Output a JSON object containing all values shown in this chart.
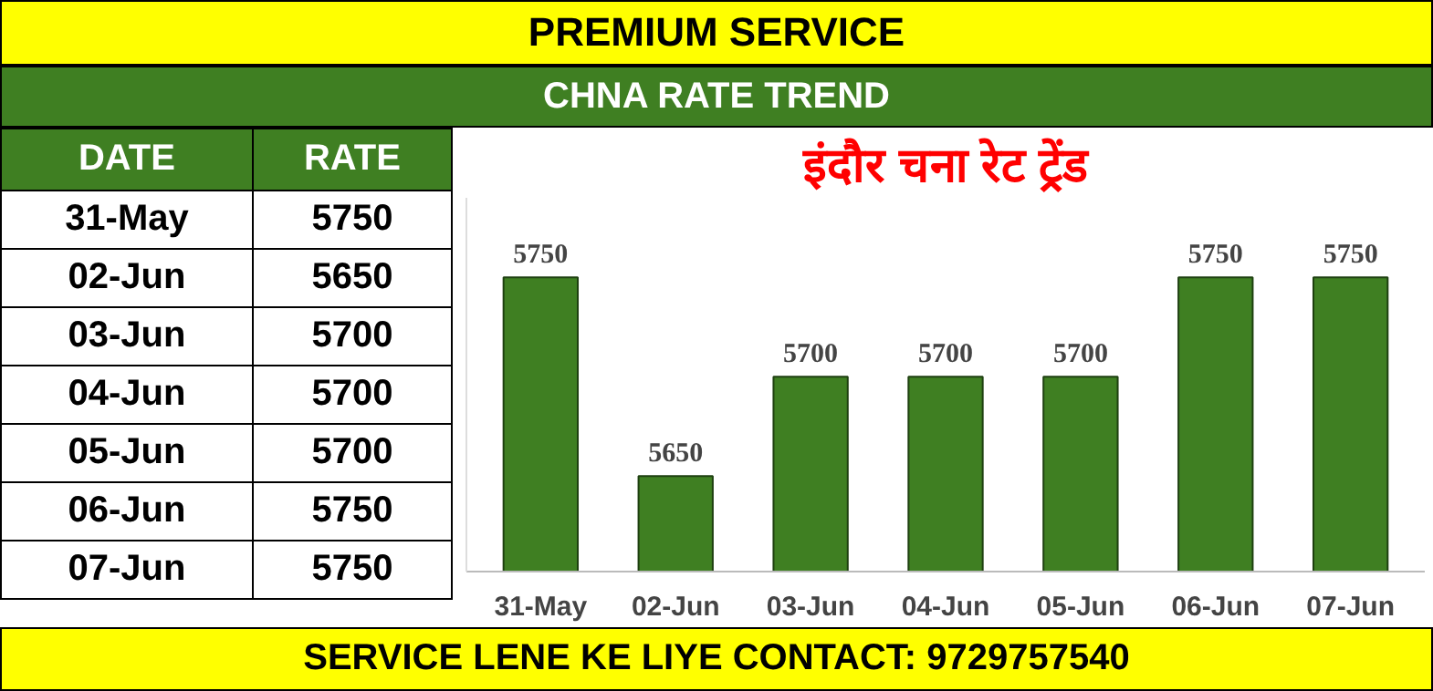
{
  "chart_data": [
    {
      "type": "other",
      "categories": [
        "31-May",
        "02-Jun",
        "03-Jun",
        "04-Jun",
        "05-Jun",
        "06-Jun",
        "07-Jun"
      ],
      "values": [
        5750,
        5650,
        5700,
        5700,
        5700,
        5750,
        5750
      ],
      "data_labels": true,
      "annotations": [
        "DATE",
        "RATE"
      ]
    },
    {
      "type": "bar",
      "title": "इंदौर चना रेट ट्रेंड",
      "categories": [
        "31-May",
        "02-Jun",
        "03-Jun",
        "04-Jun",
        "05-Jun",
        "06-Jun",
        "07-Jun"
      ],
      "values": [
        5750,
        5650,
        5700,
        5700,
        5700,
        5750,
        5750
      ],
      "color": "#3f7f22",
      "ylim": [
        5602,
        5790
      ],
      "data_labels": true,
      "tick_labels": "x",
      "annotations": [
        "PREMIUM SERVICE",
        "CHNA RATE TREND",
        "SERVICE LENE KE LIYE CONTACT: 9729757540"
      ]
    }
  ]
}
